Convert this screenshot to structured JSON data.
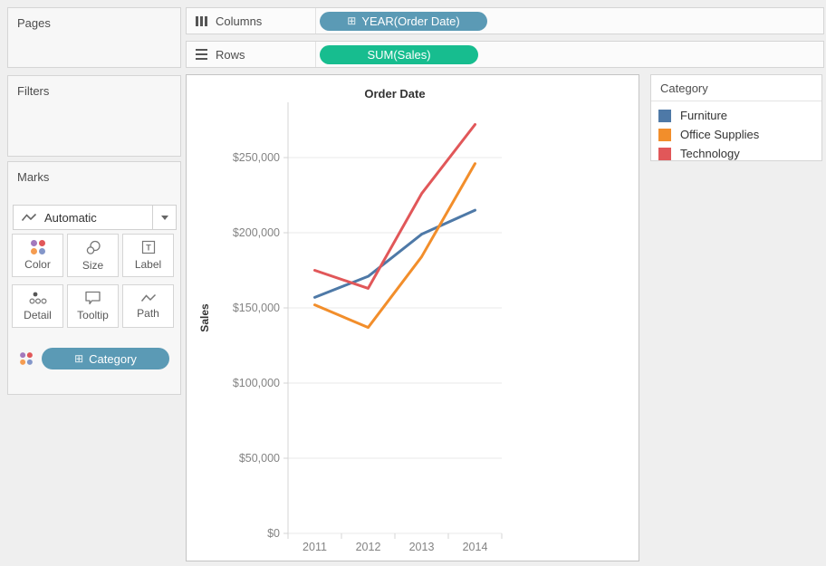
{
  "sidebar": {
    "pages_label": "Pages",
    "filters_label": "Filters"
  },
  "marks": {
    "title": "Marks",
    "mark_type": "Automatic",
    "buttons": {
      "color": "Color",
      "size": "Size",
      "label": "Label",
      "detail": "Detail",
      "tooltip": "Tooltip",
      "path": "Path"
    },
    "category_pill": "Category",
    "color_icon_dots": [
      "#a379bd",
      "#e15759",
      "#f59c51",
      "#8396c9"
    ]
  },
  "shelves": {
    "columns_label": "Columns",
    "columns_pill": "YEAR(Order Date)",
    "rows_label": "Rows",
    "rows_pill": "SUM(Sales)"
  },
  "icons": {
    "expand_glyph": "⊞"
  },
  "colors": {
    "dimension_pill_blue": "#5b9ab5",
    "measure_pill_green": "#17bd8f"
  },
  "legend": {
    "title": "Category",
    "items": [
      {
        "label": "Furniture",
        "color": "#4e79a7"
      },
      {
        "label": "Office Supplies",
        "color": "#f28e2b"
      },
      {
        "label": "Technology",
        "color": "#e15759"
      }
    ]
  },
  "chart_data": {
    "type": "line",
    "title": "Order Date",
    "xlabel": "",
    "ylabel": "Sales",
    "x": [
      "2011",
      "2012",
      "2013",
      "2014"
    ],
    "series": [
      {
        "name": "Furniture",
        "color": "#4e79a7",
        "values": [
          157000,
          171000,
          199000,
          215000
        ]
      },
      {
        "name": "Office Supplies",
        "color": "#f28e2b",
        "values": [
          152000,
          137000,
          184000,
          246000
        ]
      },
      {
        "name": "Technology",
        "color": "#e15759",
        "values": [
          175000,
          163000,
          226000,
          272000
        ]
      }
    ],
    "yticks": [
      0,
      50000,
      100000,
      150000,
      200000,
      250000
    ],
    "ytick_labels": [
      "$0",
      "$50,000",
      "$100,000",
      "$150,000",
      "$200,000",
      "$250,000"
    ],
    "ylim": [
      0,
      285000
    ],
    "grid": true,
    "legend_position": "right"
  }
}
